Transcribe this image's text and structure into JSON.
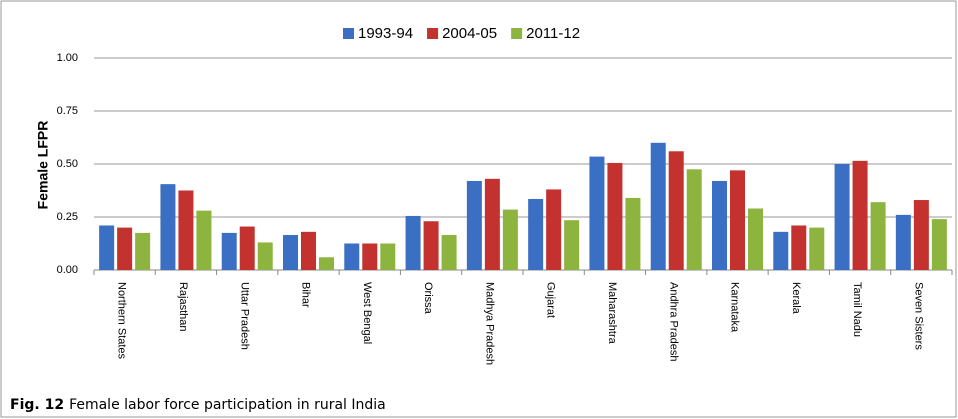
{
  "chart_data": {
    "type": "bar",
    "ylabel": "Female LFPR",
    "categories": [
      "Northern States",
      "Rajasthan",
      "Uttar Pradesh",
      "Bihar",
      "West Bengal",
      "Orissa",
      "Madhya Pradesh",
      "Gujarat",
      "Maharashtra",
      "Andhra Pradesh",
      "Karnataka",
      "Kerala",
      "Tamil Nadu",
      "Seven Sisters"
    ],
    "series": [
      {
        "name": "1993-94",
        "color": "#3b6fc3",
        "values": [
          0.21,
          0.405,
          0.175,
          0.165,
          0.125,
          0.255,
          0.42,
          0.335,
          0.535,
          0.6,
          0.42,
          0.18,
          0.5,
          0.26
        ]
      },
      {
        "name": "2004-05",
        "color": "#c3322e",
        "values": [
          0.2,
          0.375,
          0.205,
          0.18,
          0.125,
          0.23,
          0.43,
          0.38,
          0.505,
          0.56,
          0.47,
          0.21,
          0.515,
          0.33
        ]
      },
      {
        "name": "2011-12",
        "color": "#8cb43f",
        "values": [
          0.175,
          0.28,
          0.13,
          0.06,
          0.125,
          0.165,
          0.285,
          0.235,
          0.34,
          0.475,
          0.29,
          0.2,
          0.32,
          0.24
        ]
      }
    ],
    "ylim": [
      0,
      1
    ],
    "yticks": [
      {
        "value": 0,
        "label": "0.00"
      },
      {
        "value": 0.25,
        "label": "0.25"
      },
      {
        "value": 0.5,
        "label": "0.50"
      },
      {
        "value": 0.75,
        "label": "0.75"
      },
      {
        "value": 1,
        "label": "1.00"
      }
    ],
    "grid": true,
    "legend": "top"
  },
  "caption": {
    "label": "Fig. 12",
    "text": "Female labor force participation in rural India"
  }
}
